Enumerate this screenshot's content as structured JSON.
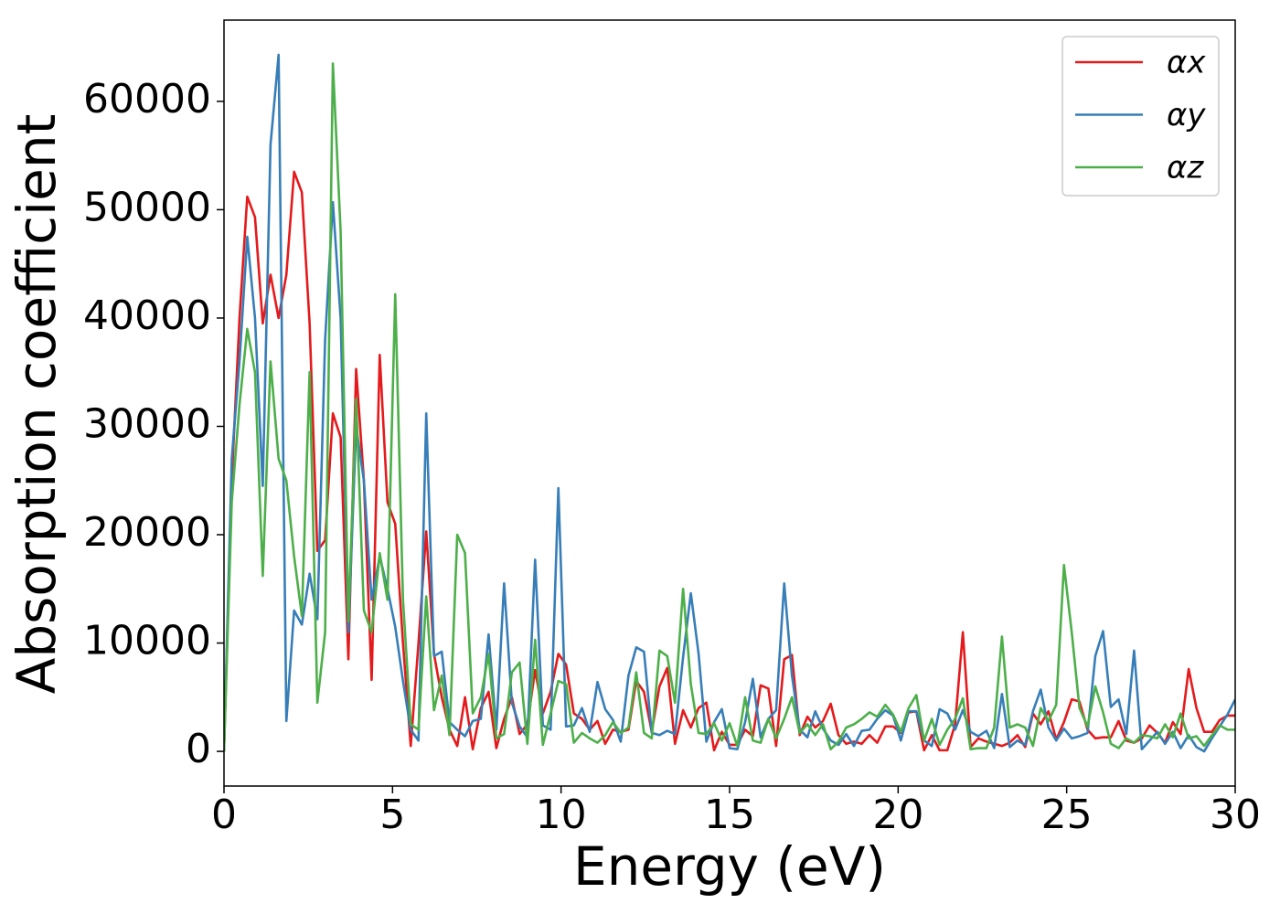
{
  "chart_data": {
    "type": "line",
    "xlabel": "Energy (eV)",
    "ylabel": "Absorption coefficient",
    "x": [
      0,
      0.23,
      0.46,
      0.69,
      0.92,
      1.15,
      1.38,
      1.62,
      1.85,
      2.08,
      2.31,
      2.54,
      2.77,
      3,
      3.23,
      3.46,
      3.69,
      3.92,
      4.15,
      4.38,
      4.62,
      4.85,
      5.08,
      5.31,
      5.54,
      5.77,
      6,
      6.23,
      6.46,
      6.69,
      6.92,
      7.15,
      7.38,
      7.62,
      7.85,
      8.08,
      8.31,
      8.54,
      8.77,
      9,
      9.23,
      9.46,
      9.69,
      9.92,
      10.15,
      10.38,
      10.62,
      10.85,
      11.08,
      11.31,
      11.54,
      11.77,
      12,
      12.23,
      12.46,
      12.69,
      12.92,
      13.15,
      13.38,
      13.62,
      13.85,
      14.08,
      14.31,
      14.54,
      14.77,
      15,
      15.23,
      15.46,
      15.69,
      15.92,
      16.15,
      16.38,
      16.62,
      16.85,
      17.08,
      17.31,
      17.54,
      17.77,
      18,
      18.23,
      18.46,
      18.69,
      18.92,
      19.15,
      19.38,
      19.62,
      19.85,
      20.08,
      20.31,
      20.54,
      20.77,
      21,
      21.23,
      21.46,
      21.69,
      21.92,
      22.15,
      22.38,
      22.62,
      22.85,
      23.08,
      23.31,
      23.54,
      23.77,
      24,
      24.23,
      24.46,
      24.69,
      24.92,
      25.15,
      25.38,
      25.62,
      25.85,
      26.08,
      26.31,
      26.54,
      26.77,
      27,
      27.23,
      27.46,
      27.69,
      27.92,
      28.15,
      28.38,
      28.62,
      28.85,
      29.08,
      29.31,
      29.54,
      29.77,
      30
    ],
    "series": [
      {
        "name": "αx",
        "color": "#e41a1c",
        "values": [
          0,
          25000,
          40000,
          51200,
          49300,
          39500,
          44000,
          40000,
          44000,
          53500,
          51600,
          39500,
          18500,
          19500,
          31200,
          29000,
          8500,
          35300,
          25000,
          6600,
          36600,
          23000,
          21000,
          10000,
          500,
          10000,
          20300,
          9000,
          5000,
          2000,
          500,
          5000,
          200,
          4000,
          5500,
          300,
          3000,
          5000,
          1600,
          2500,
          7500,
          3500,
          5500,
          9000,
          8000,
          3500,
          3000,
          2000,
          2800,
          700,
          2000,
          1800,
          2000,
          6500,
          5500,
          1800,
          6000,
          7700,
          700,
          3800,
          2200,
          4000,
          4500,
          100,
          1800,
          600,
          600,
          2000,
          1400,
          6100,
          5800,
          500,
          8500,
          8900,
          1500,
          3200,
          2200,
          2800,
          4400,
          1500,
          700,
          900,
          700,
          1500,
          800,
          2300,
          2300,
          1700,
          3600,
          3700,
          100,
          1500,
          100,
          100,
          2500,
          11000,
          400,
          1200,
          900,
          700,
          500,
          800,
          1500,
          400,
          3500,
          2500,
          3700,
          1100,
          2700,
          4800,
          4600,
          2000,
          1200,
          1300,
          1300,
          2800,
          1000,
          800,
          1200,
          2400,
          1700,
          800,
          2700,
          1600,
          7600,
          4000,
          1800,
          1800,
          2900,
          3300,
          3300
        ]
      },
      {
        "name": "αy",
        "color": "#377eb8",
        "values": [
          0,
          27000,
          36000,
          47500,
          40000,
          24500,
          56000,
          64300,
          2800,
          13000,
          11700,
          16400,
          12200,
          38000,
          50700,
          40000,
          11000,
          30000,
          25000,
          14000,
          18000,
          15000,
          11500,
          6500,
          2000,
          1000,
          31200,
          8800,
          9200,
          2700,
          2000,
          1400,
          2800,
          3000,
          10800,
          2000,
          15500,
          4500,
          2300,
          1300,
          17700,
          2400,
          2000,
          24300,
          2300,
          2400,
          4000,
          1800,
          6400,
          3900,
          2900,
          900,
          7000,
          9600,
          9200,
          1700,
          1500,
          1900,
          1600,
          8700,
          14600,
          9000,
          900,
          2700,
          3900,
          300,
          200,
          2700,
          6700,
          1300,
          3000,
          3800,
          15500,
          7000,
          2000,
          1300,
          3700,
          2100,
          1000,
          600,
          1600,
          500,
          1900,
          2000,
          3000,
          3800,
          3300,
          1000,
          3700,
          3700,
          1000,
          500,
          3900,
          3500,
          2000,
          3800,
          1800,
          1400,
          1900,
          300,
          5300,
          400,
          1000,
          600,
          3700,
          5700,
          2200,
          1000,
          2100,
          1200,
          1400,
          1700,
          8800,
          11100,
          4100,
          4800,
          1600,
          9300,
          200,
          1000,
          1800,
          700,
          1800,
          300,
          1500,
          400,
          0,
          1200,
          2300,
          3400,
          4800
        ]
      },
      {
        "name": "αz",
        "color": "#4daf4a",
        "values": [
          0,
          23000,
          32000,
          39000,
          35000,
          16200,
          36000,
          27000,
          25000,
          18000,
          12500,
          35000,
          4500,
          11000,
          63500,
          48000,
          12000,
          32500,
          13000,
          11000,
          18300,
          14000,
          42200,
          14000,
          2500,
          2000,
          14300,
          3800,
          7000,
          1500,
          20000,
          18300,
          3500,
          5000,
          9000,
          1200,
          1600,
          7300,
          8200,
          700,
          10300,
          600,
          3500,
          6500,
          6200,
          800,
          1700,
          1200,
          800,
          1500,
          2700,
          1700,
          2200,
          7300,
          1700,
          1200,
          9300,
          8800,
          4500,
          15000,
          6200,
          1700,
          1600,
          2600,
          1000,
          2600,
          500,
          5000,
          1000,
          800,
          3000,
          1200,
          3000,
          5000,
          1700,
          2500,
          1500,
          2500,
          200,
          900,
          2200,
          2500,
          3000,
          3600,
          3200,
          4300,
          3400,
          1800,
          4000,
          5200,
          1000,
          3000,
          600,
          2000,
          3000,
          4900,
          200,
          300,
          300,
          2200,
          10600,
          2200,
          2500,
          2200,
          500,
          4000,
          2800,
          4300,
          17200,
          11000,
          4000,
          2300,
          6000,
          3600,
          700,
          300,
          1200,
          800,
          1500,
          1400,
          1200,
          2500,
          1300,
          3500,
          1200,
          1400,
          500,
          1500,
          2400,
          2000,
          2000
        ]
      }
    ],
    "xlim": [
      0,
      30
    ],
    "xticks": [
      0,
      5,
      10,
      15,
      20,
      25,
      30
    ],
    "ylim": [
      -3200,
      67500
    ],
    "yticks": [
      0,
      10000,
      20000,
      30000,
      40000,
      50000,
      60000
    ],
    "legend": "upper right",
    "grid": false
  }
}
